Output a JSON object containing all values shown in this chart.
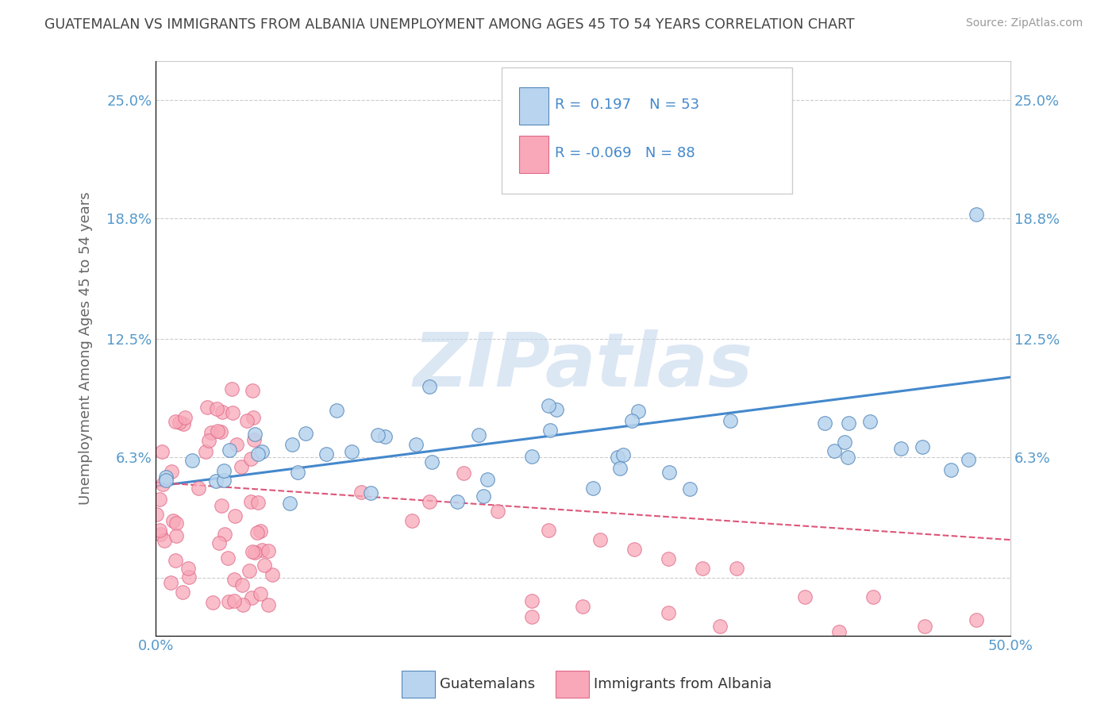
{
  "title": "GUATEMALAN VS IMMIGRANTS FROM ALBANIA UNEMPLOYMENT AMONG AGES 45 TO 54 YEARS CORRELATION CHART",
  "source": "Source: ZipAtlas.com",
  "ylabel": "Unemployment Among Ages 45 to 54 years",
  "xlim": [
    0.0,
    0.5
  ],
  "ylim": [
    -0.03,
    0.27
  ],
  "yticks": [
    0.0,
    0.063,
    0.125,
    0.188,
    0.25
  ],
  "ytick_labels": [
    "",
    "6.3%",
    "12.5%",
    "18.8%",
    "25.0%"
  ],
  "xticks": [
    0.0,
    0.125,
    0.25,
    0.375,
    0.5
  ],
  "xtick_labels": [
    "0.0%",
    "",
    "",
    "",
    "50.0%"
  ],
  "series1_name": "Guatemalans",
  "series1_color": "#b8d4ee",
  "series1_edge": "#5588bb",
  "series1_R": 0.197,
  "series1_N": 53,
  "series2_name": "Immigrants from Albania",
  "series2_color": "#f8a8b8",
  "series2_edge": "#e06888",
  "series2_R": -0.069,
  "series2_N": 88,
  "blue_line_color": "#4488cc",
  "pink_line_color": "#dd5577",
  "blue_line_x": [
    0.0,
    0.5
  ],
  "blue_line_y": [
    0.048,
    0.105
  ],
  "pink_line_x": [
    0.0,
    0.5
  ],
  "pink_line_y": [
    0.05,
    0.02
  ],
  "watermark_text": "ZIPatlas",
  "watermark_color": "#c5d8ee",
  "background_color": "#ffffff",
  "grid_color": "#cccccc",
  "title_color": "#444444",
  "axis_label_color": "#666666",
  "tick_color": "#5599cc",
  "legend_text_color": "#4488cc",
  "legend_r1": "R =  0.197",
  "legend_n1": "N = 53",
  "legend_r2": "R = -0.069",
  "legend_n2": "N = 88"
}
